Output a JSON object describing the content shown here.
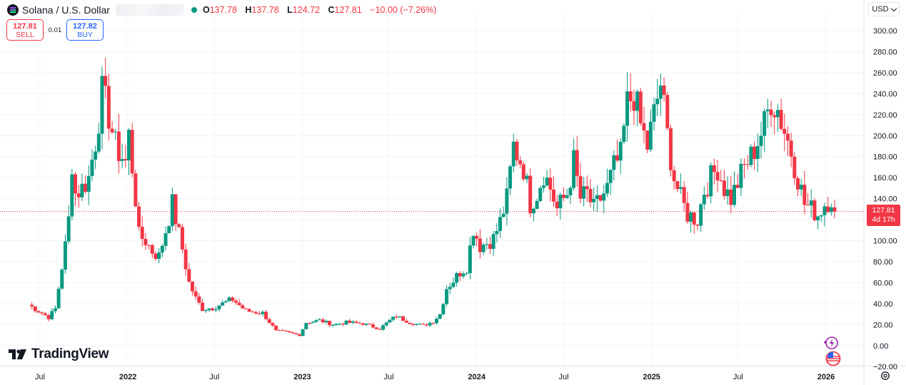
{
  "legend": {
    "symbol": "Solana / U.S. Dollar",
    "open_label": "O",
    "open": "137.78",
    "high_label": "H",
    "high": "137.78",
    "low_label": "L",
    "low": "124.72",
    "close_label": "C",
    "close": "127.81",
    "change": "−10.00 (−7.26%)"
  },
  "trade": {
    "sell_price": "127.81",
    "sell_label": "SELL",
    "spread": "0.01",
    "buy_price": "127.82",
    "buy_label": "BUY"
  },
  "currency": "USD",
  "brand": "TradingView",
  "price_tag": {
    "price": "127.81",
    "countdown": "4d 17h"
  },
  "colors": {
    "up": "#089981",
    "down": "#f23645",
    "price_line": "#f23645",
    "grid": "#f0f3fa"
  },
  "chart_data": {
    "type": "candlestick",
    "title": "Solana / U.S. Dollar",
    "ylim": [
      -20,
      310
    ],
    "y_ticks": [
      300,
      280,
      260,
      240,
      220,
      200,
      180,
      160,
      140,
      120,
      100,
      80,
      60,
      40,
      20,
      0,
      -20
    ],
    "y_tick_labels": [
      "300.00",
      "280.00",
      "260.00",
      "240.00",
      "220.00",
      "200.00",
      "180.00",
      "160.00",
      "140.00",
      "120.00",
      "100.00",
      "80.00",
      "60.00",
      "40.00",
      "20.00",
      "0.00",
      "−20.00"
    ],
    "x_ticks": [
      {
        "label": "Jul",
        "date": "2021-07-01",
        "bold": false
      },
      {
        "label": "2022",
        "date": "2022-01-01",
        "bold": true
      },
      {
        "label": "Jul",
        "date": "2022-07-01",
        "bold": false
      },
      {
        "label": "2023",
        "date": "2023-01-01",
        "bold": true
      },
      {
        "label": "Jul",
        "date": "2023-07-01",
        "bold": false
      },
      {
        "label": "2024",
        "date": "2024-01-01",
        "bold": true
      },
      {
        "label": "Jul",
        "date": "2024-07-01",
        "bold": false
      },
      {
        "label": "2025",
        "date": "2025-01-01",
        "bold": true
      },
      {
        "label": "Jul",
        "date": "2025-07-01",
        "bold": false
      },
      {
        "label": "2026",
        "date": "2026-01-01",
        "bold": true
      }
    ],
    "grid": true,
    "last_price": 127.81,
    "interval": "weekly",
    "close_path": [
      [
        "2021-06-07",
        39
      ],
      [
        "2021-06-28",
        33
      ],
      [
        "2021-07-19",
        27
      ],
      [
        "2021-08-02",
        35
      ],
      [
        "2021-08-16",
        75
      ],
      [
        "2021-08-23",
        95
      ],
      [
        "2021-08-30",
        120
      ],
      [
        "2021-09-06",
        175
      ],
      [
        "2021-09-13",
        145
      ],
      [
        "2021-09-27",
        150
      ],
      [
        "2021-10-11",
        160
      ],
      [
        "2021-10-25",
        195
      ],
      [
        "2021-11-08",
        240
      ],
      [
        "2021-11-22",
        220
      ],
      [
        "2021-12-06",
        190
      ],
      [
        "2021-12-27",
        175
      ],
      [
        "2022-01-03",
        200
      ],
      [
        "2022-01-17",
        140
      ],
      [
        "2022-01-24",
        105
      ],
      [
        "2022-02-07",
        100
      ],
      [
        "2022-02-21",
        90
      ],
      [
        "2022-03-07",
        85
      ],
      [
        "2022-03-28",
        122
      ],
      [
        "2022-04-04",
        135
      ],
      [
        "2022-04-25",
        92
      ],
      [
        "2022-05-09",
        60
      ],
      [
        "2022-05-23",
        45
      ],
      [
        "2022-06-06",
        35
      ],
      [
        "2022-06-27",
        36
      ],
      [
        "2022-07-18",
        40
      ],
      [
        "2022-08-08",
        44
      ],
      [
        "2022-09-05",
        33
      ],
      [
        "2022-10-10",
        31
      ],
      [
        "2022-11-07",
        14
      ],
      [
        "2022-11-28",
        13
      ],
      [
        "2022-12-26",
        10
      ],
      [
        "2023-01-09",
        22
      ],
      [
        "2023-02-06",
        24
      ],
      [
        "2023-03-06",
        20
      ],
      [
        "2023-04-03",
        22
      ],
      [
        "2023-05-08",
        21
      ],
      [
        "2023-06-12",
        16
      ],
      [
        "2023-07-03",
        24
      ],
      [
        "2023-07-17",
        28
      ],
      [
        "2023-08-14",
        22
      ],
      [
        "2023-09-11",
        19
      ],
      [
        "2023-10-02",
        23
      ],
      [
        "2023-10-16",
        30
      ],
      [
        "2023-10-30",
        55
      ],
      [
        "2023-11-13",
        62
      ],
      [
        "2023-11-27",
        70
      ],
      [
        "2023-12-11",
        75
      ],
      [
        "2023-12-25",
        112
      ],
      [
        "2024-01-08",
        95
      ],
      [
        "2024-01-22",
        98
      ],
      [
        "2024-02-05",
        102
      ],
      [
        "2024-02-19",
        118
      ],
      [
        "2024-03-04",
        140
      ],
      [
        "2024-03-18",
        190
      ],
      [
        "2024-04-08",
        170
      ],
      [
        "2024-04-22",
        135
      ],
      [
        "2024-05-06",
        145
      ],
      [
        "2024-05-20",
        165
      ],
      [
        "2024-06-03",
        150
      ],
      [
        "2024-06-17",
        130
      ],
      [
        "2024-07-08",
        145
      ],
      [
        "2024-07-22",
        175
      ],
      [
        "2024-08-05",
        140
      ],
      [
        "2024-08-19",
        145
      ],
      [
        "2024-09-02",
        130
      ],
      [
        "2024-09-16",
        140
      ],
      [
        "2024-09-30",
        150
      ],
      [
        "2024-10-14",
        170
      ],
      [
        "2024-10-28",
        180
      ],
      [
        "2024-11-11",
        230
      ],
      [
        "2024-11-25",
        240
      ],
      [
        "2024-12-09",
        210
      ],
      [
        "2024-12-23",
        190
      ],
      [
        "2025-01-06",
        220
      ],
      [
        "2025-01-20",
        250
      ],
      [
        "2025-02-03",
        200
      ],
      [
        "2025-02-17",
        160
      ],
      [
        "2025-03-03",
        140
      ],
      [
        "2025-03-17",
        125
      ],
      [
        "2025-04-07",
        120
      ],
      [
        "2025-04-21",
        148
      ],
      [
        "2025-05-05",
        160
      ],
      [
        "2025-05-19",
        170
      ],
      [
        "2025-06-02",
        150
      ],
      [
        "2025-06-16",
        140
      ],
      [
        "2025-06-30",
        155
      ],
      [
        "2025-07-14",
        170
      ],
      [
        "2025-07-28",
        180
      ],
      [
        "2025-08-11",
        195
      ],
      [
        "2025-08-25",
        210
      ],
      [
        "2025-09-08",
        235
      ],
      [
        "2025-09-22",
        225
      ],
      [
        "2025-10-06",
        205
      ],
      [
        "2025-10-20",
        185
      ],
      [
        "2025-11-03",
        160
      ],
      [
        "2025-11-17",
        135
      ],
      [
        "2025-12-01",
        130
      ],
      [
        "2025-12-15",
        125
      ],
      [
        "2025-12-29",
        135
      ],
      [
        "2026-01-12",
        140
      ],
      [
        "2026-01-19",
        127.81
      ]
    ]
  }
}
